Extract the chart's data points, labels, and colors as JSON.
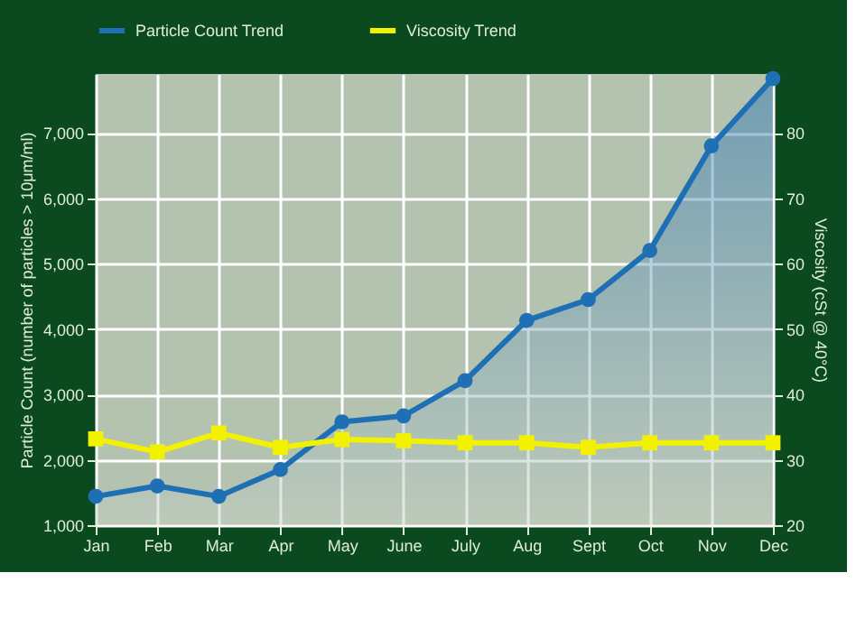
{
  "chart_data": {
    "type": "line",
    "xlabel": null,
    "ylabel": "Particle Count (number of particles > 10μm/ml)",
    "y2label": "Viscosity (cSt @ 40°C)",
    "categories": [
      "Jan",
      "Feb",
      "Mar",
      "Apr",
      "May",
      "June",
      "July",
      "Aug",
      "Sept",
      "Oct",
      "Nov",
      "Dec"
    ],
    "series": [
      {
        "name": "Particle Count Trend",
        "type": "area",
        "color": "#1f6fb5",
        "marker": "circle",
        "values": [
          1440,
          1600,
          1440,
          1850,
          2580,
          2670,
          3210,
          4130,
          4450,
          5200,
          6800,
          7830
        ]
      },
      {
        "name": "Viscosity Trend",
        "axis": "y2",
        "color": "#f2f200",
        "marker": "square",
        "values": [
          33.2,
          31.2,
          34.1,
          31.9,
          33.1,
          32.9,
          32.6,
          32.6,
          31.9,
          32.6,
          32.6,
          32.6
        ]
      }
    ],
    "ylim": [
      1000,
      7900
    ],
    "yticks": [
      {
        "value": 1000,
        "label": "1,000"
      },
      {
        "value": 2000,
        "label": "2,000"
      },
      {
        "value": 3000,
        "label": "3,000"
      },
      {
        "value": 4000,
        "label": "4,000"
      },
      {
        "value": 5000,
        "label": "5,000"
      },
      {
        "value": 6000,
        "label": "6,000"
      },
      {
        "value": 7000,
        "label": "7,000"
      }
    ],
    "y2lim": [
      20,
      89
    ],
    "y2ticks": [
      20,
      30,
      40,
      50,
      60,
      70,
      80
    ],
    "grid": true,
    "legend": "top"
  }
}
